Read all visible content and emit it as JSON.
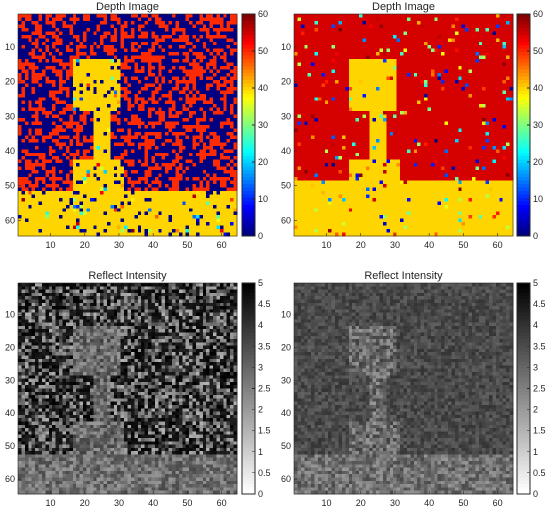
{
  "chart_data": [
    {
      "type": "heatmap",
      "title": "Depth Image",
      "colormap": "jet",
      "clim": [
        0,
        60
      ],
      "colorbar_ticks": [
        "0",
        "10",
        "20",
        "30",
        "40",
        "50",
        "60"
      ],
      "xlim": [
        0.5,
        64.5
      ],
      "ylim": [
        0.5,
        64.5
      ],
      "xticks": [
        "10",
        "20",
        "30",
        "40",
        "50",
        "60"
      ],
      "yticks": [
        "10",
        "20",
        "30",
        "40",
        "50",
        "60"
      ],
      "scene_regions": {
        "background_value": 0,
        "noise_value": 50,
        "object_value": 40,
        "floor_value": 40,
        "floor_start_row": 52
      },
      "noise_note": "random pixels"
    },
    {
      "type": "heatmap",
      "title": "Depth Image",
      "colormap": "jet",
      "clim": [
        0,
        60
      ],
      "colorbar_ticks": [
        "0",
        "10",
        "20",
        "30",
        "40",
        "50",
        "60"
      ],
      "xlim": [
        0.5,
        64.5
      ],
      "ylim": [
        0.5,
        64.5
      ],
      "xticks": [
        "10",
        "20",
        "30",
        "40",
        "50",
        "60"
      ],
      "yticks": [
        "10",
        "20",
        "30",
        "40",
        "50",
        "60"
      ],
      "scene_regions": {
        "background_value": 55,
        "object_value": 40,
        "floor_value": 40,
        "floor_start_row": 49
      }
    },
    {
      "type": "heatmap",
      "title": "Reflect Intensity",
      "colormap": "gray",
      "clim": [
        0,
        5
      ],
      "colorbar_ticks": [
        "0",
        "0.5",
        "1",
        "1.5",
        "2",
        "2.5",
        "3",
        "3.5",
        "4",
        "4.5",
        "5"
      ],
      "xlim": [
        0.5,
        64.5
      ],
      "ylim": [
        0.5,
        64.5
      ],
      "xticks": [
        "10",
        "20",
        "30",
        "40",
        "50",
        "60"
      ],
      "yticks": [
        "10",
        "20",
        "30",
        "40",
        "50",
        "60"
      ]
    },
    {
      "type": "heatmap",
      "title": "Reflect Intensity",
      "colormap": "gray",
      "clim": [
        0,
        5
      ],
      "colorbar_ticks": [
        "0",
        "0.5",
        "1",
        "1.5",
        "2",
        "2.5",
        "3",
        "3.5",
        "4",
        "4.5",
        "5"
      ],
      "xlim": [
        0.5,
        64.5
      ],
      "ylim": [
        0.5,
        64.5
      ],
      "xticks": [
        "10",
        "20",
        "30",
        "40",
        "50",
        "60"
      ],
      "yticks": [
        "10",
        "20",
        "30",
        "40",
        "50",
        "60"
      ]
    }
  ]
}
